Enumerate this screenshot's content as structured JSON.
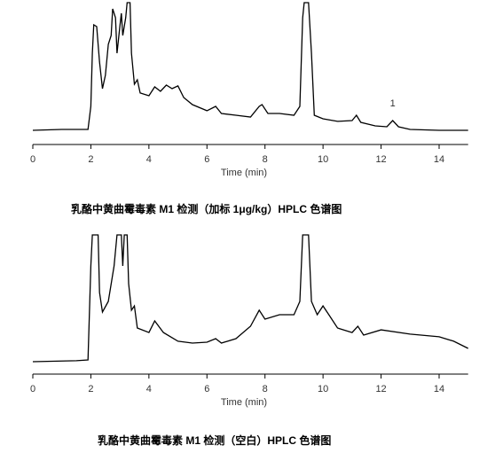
{
  "chart_data": [
    {
      "type": "line",
      "xlabel": "Time (min)",
      "color": "#000000",
      "caption": "乳酪中黄曲霉毒素 M1 检测（加标 1μg/kg）HPLC 色谱图",
      "xlim": [
        0,
        15
      ],
      "xticks": [
        0,
        2,
        4,
        6,
        8,
        10,
        12,
        14
      ],
      "ylim": [
        0,
        100
      ],
      "annotations": [
        {
          "text": "1",
          "x": 12.4,
          "y": 23.8
        }
      ],
      "x": [
        0,
        1,
        1.9,
        2.0,
        2.05,
        2.1,
        2.2,
        2.3,
        2.4,
        2.5,
        2.6,
        2.7,
        2.75,
        2.85,
        2.9,
        3.0,
        3.05,
        3.1,
        3.2,
        3.25,
        3.35,
        3.4,
        3.5,
        3.6,
        3.7,
        4.0,
        4.2,
        4.4,
        4.6,
        4.8,
        5.0,
        5.2,
        5.5,
        6.0,
        6.3,
        6.5,
        7.0,
        7.5,
        7.8,
        7.9,
        8.1,
        8.5,
        9.0,
        9.2,
        9.3,
        9.35,
        9.5,
        9.6,
        9.7,
        10.0,
        10.5,
        11.0,
        11.15,
        11.3,
        11.8,
        12.2,
        12.4,
        12.6,
        13,
        14,
        15
      ],
      "values": [
        10,
        10.6,
        10.6,
        26.9,
        64.4,
        84.4,
        83.1,
        58.1,
        39.4,
        48.8,
        70.6,
        76.9,
        95.6,
        89.4,
        64.4,
        83.1,
        92.5,
        76.9,
        89.4,
        100,
        100,
        64.4,
        42.5,
        45.6,
        36.3,
        34.4,
        40.6,
        37.5,
        41.9,
        39.4,
        41.3,
        33.1,
        28.1,
        23.8,
        26.9,
        21.9,
        20.6,
        19.4,
        26.9,
        28.1,
        21.9,
        21.9,
        20.6,
        26.9,
        89.4,
        100,
        100,
        64.4,
        20.6,
        18.1,
        16.3,
        16.9,
        20.6,
        15.6,
        13.1,
        12.5,
        16.9,
        12.5,
        10.6,
        10,
        10
      ]
    },
    {
      "type": "line",
      "xlabel": "Time (min)",
      "color": "#000000",
      "caption": "乳酪中黄曲霉毒素 M1 检测（空白）HPLC 色谱图",
      "xlim": [
        0,
        15
      ],
      "xticks": [
        0,
        2,
        4,
        6,
        8,
        10,
        12,
        14
      ],
      "ylim": [
        0,
        100
      ],
      "x": [
        0,
        1.5,
        1.9,
        2.0,
        2.05,
        2.25,
        2.3,
        2.4,
        2.6,
        2.8,
        2.9,
        3.05,
        3.1,
        3.15,
        3.25,
        3.3,
        3.4,
        3.5,
        3.6,
        4.0,
        4.2,
        4.5,
        5.0,
        5.5,
        6.0,
        6.3,
        6.5,
        7.0,
        7.5,
        7.8,
        8.0,
        8.5,
        9.0,
        9.2,
        9.3,
        9.5,
        9.6,
        9.8,
        10.0,
        10.2,
        10.5,
        11,
        11.2,
        11.4,
        12,
        13,
        14,
        14.5,
        15
      ],
      "values": [
        8.9,
        9.6,
        10.2,
        77.7,
        100,
        100,
        58.6,
        44.6,
        52.2,
        77.7,
        100,
        100,
        77.7,
        100,
        100,
        65,
        45.9,
        49,
        33.1,
        29.9,
        38.2,
        29.9,
        23.6,
        22.3,
        22.9,
        25.5,
        22.3,
        25.5,
        34.4,
        45.9,
        39.5,
        42.7,
        42.7,
        52.2,
        100,
        100,
        52.2,
        42.7,
        49,
        42.7,
        33.1,
        29.9,
        34.4,
        28,
        31.8,
        28.7,
        26.8,
        23.6,
        18.5
      ]
    }
  ]
}
